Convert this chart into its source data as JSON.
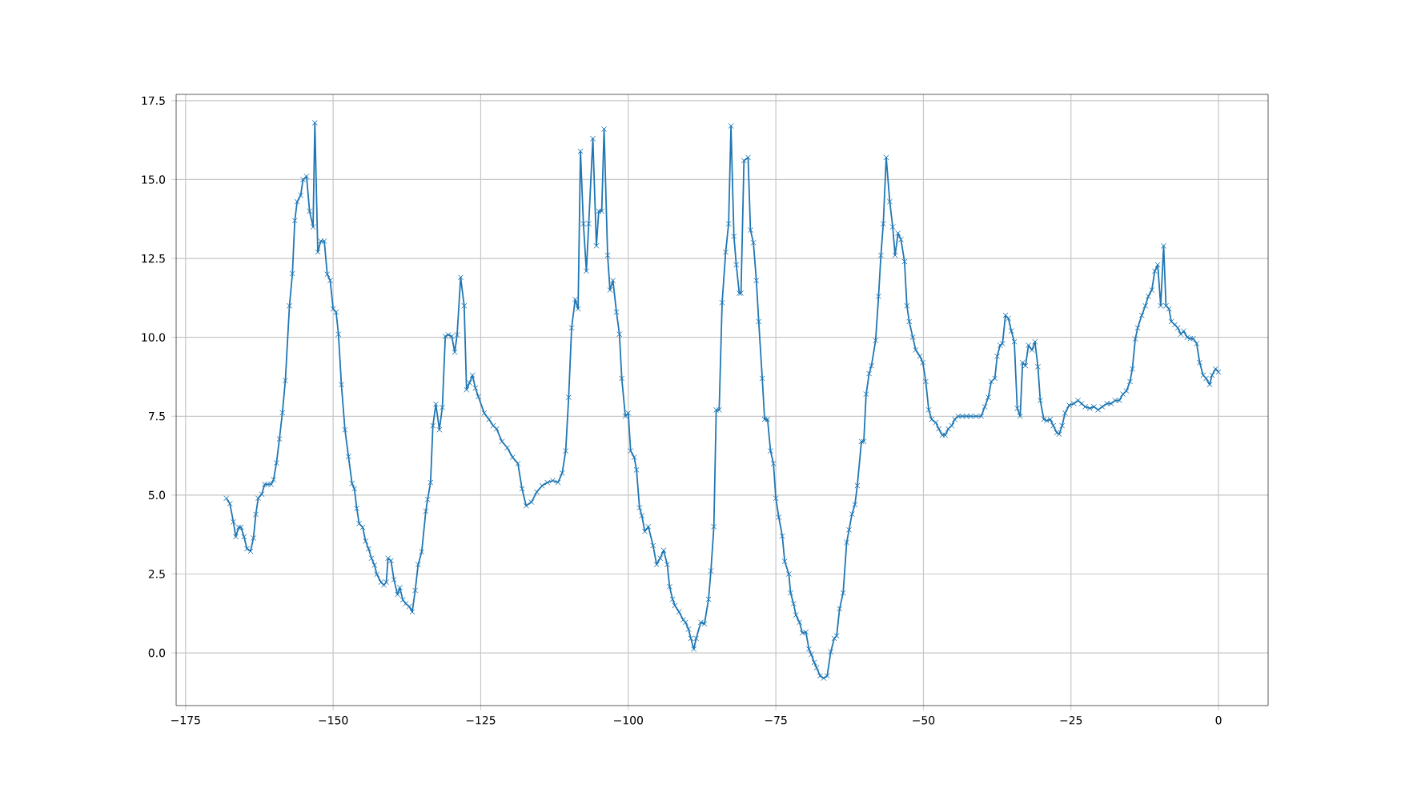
{
  "chart_data": {
    "type": "line",
    "color": "#1f77b4",
    "marker": "cross",
    "line_style": "solid",
    "grid": true,
    "xlim": [
      -176.6,
      8.4
    ],
    "ylim": [
      -1.67,
      17.7
    ],
    "xticks": [
      {
        "value": -175,
        "label": "−175"
      },
      {
        "value": -150,
        "label": "−150"
      },
      {
        "value": -125,
        "label": "−125"
      },
      {
        "value": -100,
        "label": "−100"
      },
      {
        "value": -75,
        "label": "−75"
      },
      {
        "value": -50,
        "label": "−50"
      },
      {
        "value": -25,
        "label": "−25"
      },
      0
    ],
    "yticks": [
      {
        "value": 0,
        "label": "0.0"
      },
      2.5,
      {
        "value": 5,
        "label": "5.0"
      },
      7.5,
      {
        "value": 10,
        "label": "10.0"
      },
      12.5,
      {
        "value": 15,
        "label": "15.0"
      },
      17.5
    ],
    "x": [
      -168.1,
      -167.5,
      -166.9,
      -166.5,
      -166.0,
      -165.6,
      -165.1,
      -164.6,
      -164.0,
      -163.5,
      -163.1,
      -162.7,
      -162.1,
      -161.6,
      -161.1,
      -160.5,
      -160.1,
      -159.6,
      -159.1,
      -158.6,
      -158.1,
      -157.4,
      -156.9,
      -156.5,
      -156.1,
      -155.5,
      -155.1,
      -154.5,
      -154.0,
      -153.4,
      -153.1,
      -152.6,
      -152.1,
      -151.5,
      -151.0,
      -150.5,
      -150.0,
      -149.5,
      -149.1,
      -148.6,
      -148.0,
      -147.4,
      -146.8,
      -146.4,
      -146.0,
      -145.6,
      -145.0,
      -144.5,
      -144.0,
      -143.5,
      -143.0,
      -142.6,
      -141.9,
      -141.4,
      -141.0,
      -140.7,
      -140.2,
      -139.7,
      -139.1,
      -138.7,
      -138.2,
      -137.7,
      -137.1,
      -136.6,
      -136.1,
      -135.6,
      -135.0,
      -134.3,
      -134.0,
      -133.5,
      -133.1,
      -132.6,
      -132.0,
      -131.5,
      -131.0,
      -130.5,
      -129.9,
      -129.4,
      -129.0,
      -128.4,
      -127.8,
      -127.4,
      -126.9,
      -126.4,
      -125.9,
      -125.4,
      -124.4,
      -123.6,
      -122.9,
      -122.3,
      -121.4,
      -120.5,
      -119.6,
      -118.7,
      -118.0,
      -117.3,
      -116.4,
      -115.5,
      -114.6,
      -113.7,
      -112.8,
      -111.9,
      -111.2,
      -110.6,
      -110.1,
      -109.6,
      -109.0,
      -108.5,
      -108.1,
      -107.6,
      -107.1,
      -106.7,
      -106.0,
      -105.4,
      -105.0,
      -104.5,
      -104.1,
      -103.5,
      -103.1,
      -102.6,
      -102.0,
      -101.5,
      -101.1,
      -100.5,
      -100.0,
      -99.6,
      -99.0,
      -98.6,
      -98.1,
      -97.7,
      -97.2,
      -96.6,
      -95.8,
      -95.2,
      -94.6,
      -94.0,
      -93.4,
      -93.0,
      -92.5,
      -92.1,
      -91.4,
      -90.7,
      -90.3,
      -89.8,
      -89.4,
      -88.9,
      -88.5,
      -87.7,
      -87.1,
      -86.4,
      -86.0,
      -85.5,
      -85.1,
      -84.6,
      -84.1,
      -83.5,
      -83.0,
      -82.6,
      -82.1,
      -81.7,
      -81.2,
      -80.9,
      -80.4,
      -79.7,
      -79.3,
      -78.8,
      -78.3,
      -77.9,
      -77.3,
      -76.9,
      -76.4,
      -75.9,
      -75.4,
      -75.0,
      -74.5,
      -73.9,
      -73.5,
      -72.8,
      -72.5,
      -72.0,
      -71.6,
      -71.0,
      -70.5,
      -69.9,
      -69.4,
      -69.0,
      -68.5,
      -68.1,
      -67.5,
      -66.9,
      -66.3,
      -65.7,
      -65.1,
      -64.7,
      -64.2,
      -63.6,
      -63.0,
      -62.6,
      -62.1,
      -61.6,
      -61.2,
      -60.5,
      -60.1,
      -59.7,
      -59.2,
      -58.8,
      -58.1,
      -57.6,
      -57.2,
      -56.8,
      -56.3,
      -55.7,
      -55.2,
      -54.8,
      -54.3,
      -53.8,
      -53.2,
      -52.8,
      -52.4,
      -51.8,
      -51.3,
      -50.6,
      -50.1,
      -49.6,
      -49.1,
      -48.6,
      -47.9,
      -47.4,
      -46.8,
      -46.3,
      -45.8,
      -45.2,
      -44.7,
      -44.1,
      -43.4,
      -42.7,
      -42.0,
      -41.1,
      -40.2,
      -39.6,
      -39.0,
      -38.5,
      -37.9,
      -37.5,
      -37.0,
      -36.6,
      -36.1,
      -35.6,
      -35.1,
      -34.6,
      -34.1,
      -33.6,
      -33.2,
      -32.7,
      -32.2,
      -31.6,
      -31.1,
      -30.6,
      -30.2,
      -29.6,
      -29.1,
      -28.5,
      -28.0,
      -27.4,
      -27.0,
      -26.5,
      -26.0,
      -25.3,
      -24.5,
      -23.8,
      -23.2,
      -22.6,
      -21.8,
      -21.1,
      -20.4,
      -19.7,
      -18.9,
      -18.2,
      -17.5,
      -16.8,
      -16.2,
      -15.6,
      -15.0,
      -14.6,
      -14.1,
      -13.7,
      -13.0,
      -12.4,
      -11.9,
      -11.3,
      -10.8,
      -10.3,
      -9.8,
      -9.3,
      -8.9,
      -8.4,
      -8.0,
      -7.4,
      -6.9,
      -6.4,
      -5.9,
      -5.3,
      -4.8,
      -4.3,
      -3.7,
      -3.2,
      -2.6,
      -2.1,
      -1.5,
      -1.1,
      -0.5,
      0.0
    ],
    "values": [
      4.9,
      4.73,
      4.15,
      3.68,
      3.98,
      3.98,
      3.68,
      3.3,
      3.22,
      3.64,
      4.39,
      4.9,
      5.03,
      5.34,
      5.34,
      5.34,
      5.49,
      6.02,
      6.78,
      7.61,
      8.63,
      11.0,
      12.02,
      13.7,
      14.3,
      14.5,
      15.0,
      15.1,
      14.0,
      13.5,
      16.8,
      12.7,
      13.05,
      13.05,
      12.0,
      11.8,
      10.9,
      10.8,
      10.1,
      8.5,
      7.07,
      6.22,
      5.37,
      5.2,
      4.58,
      4.1,
      3.98,
      3.54,
      3.3,
      3.0,
      2.78,
      2.49,
      2.24,
      2.15,
      2.24,
      3.0,
      2.92,
      2.32,
      1.85,
      2.07,
      1.68,
      1.56,
      1.47,
      1.3,
      1.98,
      2.8,
      3.2,
      4.49,
      4.86,
      5.4,
      7.2,
      7.88,
      7.07,
      7.78,
      10.03,
      10.08,
      10.03,
      9.53,
      10.08,
      11.9,
      11.0,
      8.34,
      8.56,
      8.8,
      8.39,
      8.12,
      7.6,
      7.4,
      7.2,
      7.1,
      6.7,
      6.5,
      6.2,
      6.0,
      5.2,
      4.66,
      4.78,
      5.1,
      5.3,
      5.4,
      5.46,
      5.4,
      5.7,
      6.4,
      8.1,
      10.3,
      11.2,
      10.9,
      15.9,
      13.6,
      12.1,
      13.6,
      16.3,
      12.9,
      14.0,
      14.0,
      16.6,
      12.6,
      11.5,
      11.8,
      10.8,
      10.1,
      8.7,
      7.5,
      7.6,
      6.4,
      6.2,
      5.8,
      4.6,
      4.35,
      3.85,
      4.0,
      3.4,
      2.8,
      3.0,
      3.25,
      2.8,
      2.1,
      1.7,
      1.5,
      1.3,
      1.05,
      0.97,
      0.75,
      0.46,
      0.12,
      0.46,
      0.97,
      0.92,
      1.7,
      2.6,
      4.0,
      7.7,
      7.7,
      11.1,
      12.7,
      13.6,
      16.7,
      13.2,
      12.3,
      11.4,
      11.4,
      15.6,
      15.7,
      13.4,
      13.0,
      11.8,
      10.5,
      8.7,
      7.4,
      7.4,
      6.4,
      6.0,
      4.9,
      4.3,
      3.7,
      2.9,
      2.5,
      1.9,
      1.56,
      1.2,
      0.97,
      0.63,
      0.66,
      0.12,
      -0.05,
      -0.3,
      -0.47,
      -0.73,
      -0.8,
      -0.73,
      0.03,
      0.46,
      0.54,
      1.4,
      1.9,
      3.5,
      3.9,
      4.4,
      4.7,
      5.3,
      6.7,
      6.7,
      8.2,
      8.85,
      9.1,
      9.9,
      11.3,
      12.6,
      13.6,
      15.7,
      14.3,
      13.5,
      12.6,
      13.3,
      13.1,
      12.4,
      11.0,
      10.5,
      10.0,
      9.6,
      9.4,
      9.2,
      8.6,
      7.7,
      7.4,
      7.3,
      7.1,
      6.9,
      6.9,
      7.1,
      7.2,
      7.4,
      7.5,
      7.5,
      7.5,
      7.5,
      7.5,
      7.5,
      7.8,
      8.1,
      8.6,
      8.7,
      9.4,
      9.75,
      9.8,
      10.7,
      10.6,
      10.2,
      9.86,
      7.75,
      7.5,
      9.2,
      9.1,
      9.75,
      9.6,
      9.86,
      9.07,
      8.0,
      7.4,
      7.36,
      7.4,
      7.2,
      6.98,
      6.93,
      7.2,
      7.6,
      7.85,
      7.9,
      8.0,
      7.9,
      7.8,
      7.75,
      7.8,
      7.7,
      7.8,
      7.9,
      7.9,
      8.0,
      8.0,
      8.2,
      8.3,
      8.6,
      9.0,
      9.95,
      10.3,
      10.7,
      11.0,
      11.3,
      11.5,
      12.1,
      12.3,
      11.0,
      12.9,
      11.0,
      10.9,
      10.5,
      10.4,
      10.3,
      10.1,
      10.2,
      10.0,
      9.96,
      9.96,
      9.8,
      9.2,
      8.8,
      8.7,
      8.5,
      8.8,
      9.0,
      8.9
    ]
  }
}
